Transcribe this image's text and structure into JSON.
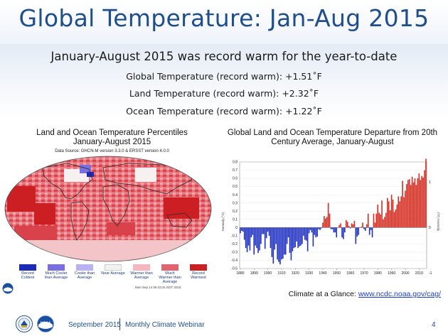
{
  "slide": {
    "title": "Global Temperature: Jan-Aug 2015",
    "headline": "January-August 2015 was record warm for the year-to-date",
    "stats": [
      "Global Temperature (record warm): +1.51˚F",
      "Land Temperature (record warm): +2.32˚F",
      "Ocean Temperature (record warm): +1.22˚F"
    ],
    "page_number": "4"
  },
  "map_panel": {
    "title_line1": "Land and Ocean Temperature Percentiles",
    "title_line2": "January-August 2015",
    "source": "Data Source: GHCN-M version 3.3.0 & ERSST version 4.0.0",
    "stamp": "Mon Sep 14 06:43:31 EDT 2015",
    "legend": [
      {
        "label": "Record Coldest",
        "color": "#1b2bb8"
      },
      {
        "label": "Much Cooler than Average",
        "color": "#7b6fe0"
      },
      {
        "label": "Cooler than Average",
        "color": "#b9b1f2"
      },
      {
        "label": "Near Average",
        "color": "#f2f2f2"
      },
      {
        "label": "Warmer than Average",
        "color": "#f4b7bf"
      },
      {
        "label": "Much Warmer than Average",
        "color": "#e06470"
      },
      {
        "label": "Record Warmest",
        "color": "#cc1f24"
      }
    ]
  },
  "chart_data": {
    "type": "bar",
    "title": "Global Land and Ocean Temperature Departure from 20th Century Average, January-August",
    "left_axis_label": "Anomaly (°C)",
    "right_axis_label": "(°F) Anomaly",
    "x_start": 1880,
    "x_end": 2015,
    "x_ticks": [
      "1880",
      "1890",
      "1900",
      "1910",
      "1920",
      "1930",
      "1940",
      "1950",
      "1960",
      "1970",
      "1980",
      "1990",
      "2000",
      "2010"
    ],
    "ylim": [
      -0.5,
      0.8
    ],
    "y_ticks": [
      "-0.5",
      "-0.4",
      "-0.3",
      "-0.2",
      "-0.1",
      "0",
      "0.1",
      "0.2",
      "0.3",
      "0.4",
      "0.5",
      "0.6",
      "0.7",
      "0.8"
    ],
    "right_ticks": [
      "-1",
      "0",
      "1"
    ],
    "positive_color": "#d42a1e",
    "negative_color": "#1d2fc1",
    "values": [
      -0.07,
      -0.04,
      -0.05,
      -0.15,
      -0.25,
      -0.3,
      -0.22,
      -0.28,
      -0.12,
      -0.09,
      -0.33,
      -0.22,
      -0.25,
      -0.31,
      -0.28,
      -0.2,
      -0.08,
      -0.08,
      -0.26,
      -0.13,
      -0.05,
      -0.1,
      -0.25,
      -0.36,
      -0.44,
      -0.27,
      -0.2,
      -0.39,
      -0.42,
      -0.45,
      -0.39,
      -0.38,
      -0.33,
      -0.33,
      -0.2,
      -0.12,
      -0.31,
      -0.4,
      -0.29,
      -0.25,
      -0.24,
      -0.17,
      -0.25,
      -0.23,
      -0.22,
      -0.2,
      -0.1,
      -0.15,
      -0.16,
      -0.29,
      -0.07,
      -0.03,
      -0.06,
      -0.23,
      -0.09,
      -0.12,
      -0.11,
      -0.02,
      -0.03,
      -0.01,
      0.06,
      0.14,
      0.11,
      0.13,
      0.3,
      0.17,
      -0.02,
      -0.02,
      -0.06,
      -0.06,
      -0.12,
      0.0,
      0.03,
      0.05,
      -0.12,
      -0.14,
      -0.06,
      0.09,
      0.07,
      0.02,
      -0.01,
      0.05,
      0.04,
      0.08,
      -0.2,
      -0.11,
      -0.09,
      0.0,
      0.01,
      0.06,
      -0.02,
      -0.04,
      0.04,
      0.17,
      -0.09,
      -0.03,
      -0.12,
      0.17,
      0.06,
      0.17,
      0.28,
      0.18,
      0.16,
      0.33,
      0.1,
      0.13,
      0.18,
      0.36,
      0.32,
      0.21,
      0.4,
      0.34,
      0.19,
      0.22,
      0.28,
      0.38,
      0.32,
      0.38,
      0.57,
      0.37,
      0.45,
      0.53,
      0.58,
      0.59,
      0.52,
      0.62,
      0.55,
      0.6,
      0.52,
      0.6,
      0.66,
      0.58,
      0.63,
      0.61,
      0.7,
      0.84
    ]
  },
  "credit": {
    "label": "Climate at a Glance: ",
    "link": "www.ncdc.noaa.gov/cag/"
  },
  "footer": {
    "date": "September 2015",
    "webinar": "Monthly Climate Webinar",
    "noaa_text": "NOAA"
  }
}
